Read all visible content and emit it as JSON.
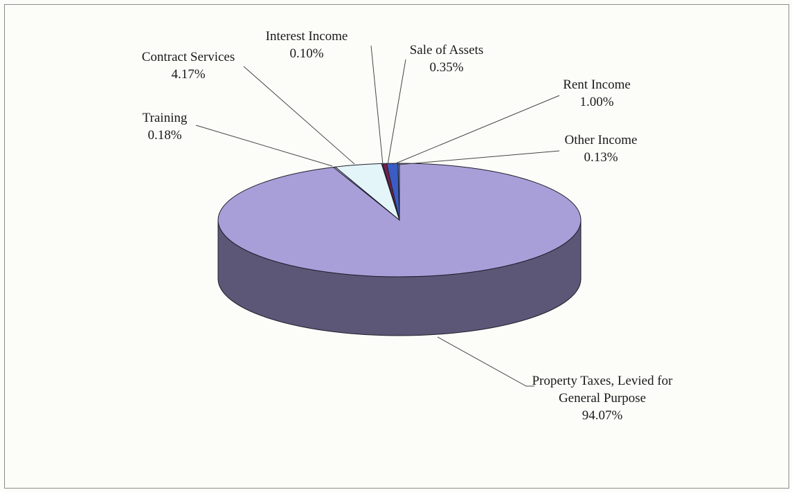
{
  "chart_data": {
    "type": "pie",
    "categories": [
      "Property Taxes, Levied for General Purpose",
      "Training",
      "Contract Services",
      "Interest Income",
      "Sale of Assets",
      "Rent Income",
      "Other Income"
    ],
    "values": [
      94.07,
      0.18,
      4.17,
      0.1,
      0.35,
      1.0,
      0.13
    ],
    "value_labels": [
      "94.07%",
      "0.18%",
      "4.17%",
      "0.10%",
      "0.35%",
      "1.00%",
      "0.13%"
    ],
    "colors": [
      "#a89fd9",
      "#c9c2ee",
      "#e4f5f9",
      "#5e2a6a",
      "#7a1f4a",
      "#3b5cc4",
      "#6f8fe0"
    ]
  }
}
